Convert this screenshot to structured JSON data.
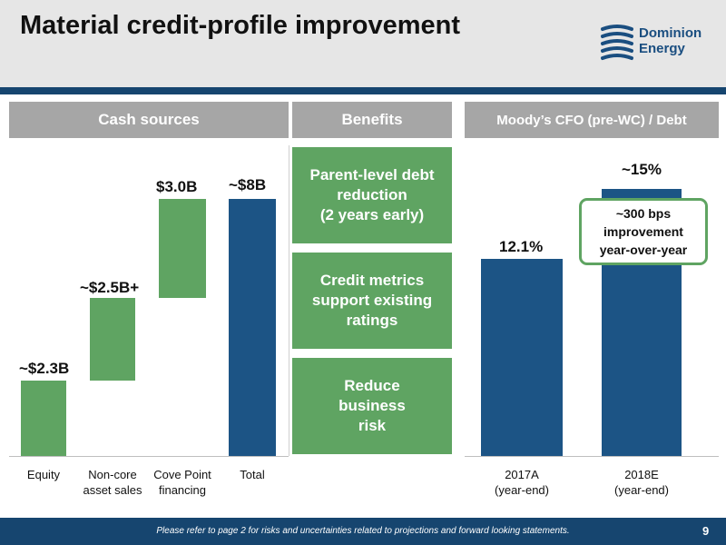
{
  "header": {
    "title": "Material credit-profile improvement",
    "logo_line1": "Dominion",
    "logo_line2": "Energy"
  },
  "sections": {
    "cash": "Cash sources",
    "benefits": "Benefits",
    "moody": "Moody’s CFO (pre-WC) / Debt"
  },
  "chart_data": [
    {
      "type": "bar",
      "title": "Cash sources",
      "categories": [
        "Equity",
        "Non-core asset sales",
        "Cove Point financing",
        "Total"
      ],
      "values": [
        2.3,
        2.5,
        3.0,
        8.0
      ],
      "labels": [
        "~$2.3B",
        "~$2.5B+",
        "$3.0B",
        "~$8B"
      ],
      "style": "waterfall",
      "colors": {
        "increment": "#5fa462",
        "total": "#1c5485"
      }
    },
    {
      "type": "bar",
      "title": "Moody’s CFO (pre-WC) / Debt",
      "categories": [
        "2017A (year-end)",
        "2018E (year-end)"
      ],
      "values": [
        12.1,
        15
      ],
      "labels": [
        "12.1%",
        "~15%"
      ],
      "color": "#1c5485",
      "annotation": "~300 bps improvement year-over-year"
    }
  ],
  "waterfall": {
    "x_labels": [
      "Equity",
      "Non-core",
      "asset sales",
      "Cove Point",
      "financing",
      "Total"
    ],
    "value_labels": [
      "~$2.3B",
      "~$2.5B+",
      "$3.0B",
      "~$8B"
    ]
  },
  "benefits": [
    [
      "Parent-level debt",
      "reduction",
      "(2 years early)"
    ],
    [
      "Credit metrics",
      "support existing",
      "ratings"
    ],
    [
      "Reduce",
      "business",
      "risk"
    ]
  ],
  "moody": {
    "x_labels": [
      "2017A",
      "(year-end)",
      "2018E",
      "(year-end)"
    ],
    "value_labels": [
      "12.1%",
      "~15%"
    ],
    "callout": [
      "~300 bps",
      "improvement",
      "year-over-year"
    ]
  },
  "footer": {
    "note": "Please refer to page 2 for risks and uncertainties related to projections and forward looking statements.",
    "page": "9"
  }
}
